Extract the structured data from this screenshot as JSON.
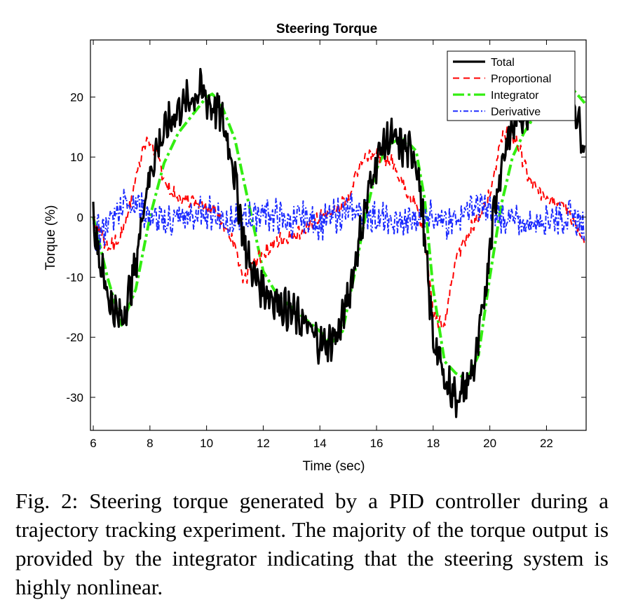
{
  "chart_data": {
    "type": "line",
    "title": "Steering Torque",
    "xlabel": "Time (sec)",
    "ylabel": "Torque (%)",
    "xlim": [
      5.9,
      23.4
    ],
    "ylim": [
      -35.5,
      29.5
    ],
    "xticks": [
      6,
      8,
      10,
      12,
      14,
      16,
      18,
      20,
      22
    ],
    "yticks": [
      20,
      10,
      0,
      -10,
      -20,
      -30
    ],
    "grid": false,
    "legend_position": "top-right",
    "series": [
      {
        "name": "Total",
        "color": "#000000",
        "style": "solid",
        "noise": 2.6,
        "x": [
          6.0,
          6.3,
          6.6,
          6.9,
          7.1,
          7.5,
          7.8,
          8.2,
          8.6,
          9.0,
          9.5,
          9.8,
          10.1,
          10.5,
          10.9,
          11.2,
          11.4,
          11.7,
          12.0,
          12.5,
          13.0,
          13.5,
          14.0,
          14.3,
          14.7,
          15.1,
          15.5,
          15.9,
          16.2,
          16.5,
          16.8,
          17.1,
          17.4,
          17.6,
          17.8,
          18.0,
          18.4,
          18.8,
          19.1,
          19.5,
          19.8,
          20.1,
          20.5,
          20.9,
          21.3,
          21.7,
          22.0,
          22.4,
          22.8,
          23.1,
          23.35
        ],
        "y": [
          0,
          -9,
          -14,
          -17,
          -16,
          -8,
          3,
          11,
          15,
          18,
          20,
          21,
          19,
          17,
          10,
          0,
          -6,
          -10,
          -12,
          -14,
          -16,
          -18,
          -21,
          -21,
          -19,
          -11,
          -1,
          8,
          12,
          13,
          12,
          11,
          10,
          2,
          -10,
          -20,
          -27,
          -30,
          -29,
          -24,
          -14,
          0,
          11,
          16,
          18,
          20,
          23,
          24,
          22,
          17,
          11
        ]
      },
      {
        "name": "Proportional",
        "color": "#ff0000",
        "style": "dashed",
        "noise": 1.0,
        "x": [
          6.0,
          6.5,
          6.9,
          7.3,
          7.6,
          7.9,
          8.2,
          8.6,
          9.0,
          9.5,
          10.0,
          10.5,
          11.0,
          11.3,
          11.6,
          12.0,
          12.5,
          13.0,
          13.5,
          14.0,
          14.5,
          15.0,
          15.4,
          15.8,
          16.2,
          16.6,
          17.0,
          17.4,
          17.7,
          18.0,
          18.4,
          18.8,
          19.2,
          19.6,
          20.0,
          20.3,
          20.6,
          21.0,
          21.4,
          21.8,
          22.3,
          22.8,
          23.35
        ],
        "y": [
          0,
          -5,
          -4,
          2,
          9,
          13,
          11,
          5,
          3,
          3,
          2,
          0,
          -5,
          -11,
          -8,
          -6,
          -4,
          -3,
          -2,
          0,
          1,
          3,
          9,
          11,
          10,
          9,
          5,
          2,
          -3,
          -16,
          -18,
          -7,
          -3,
          0,
          4,
          11,
          15,
          12,
          6,
          4,
          3,
          1,
          -5
        ]
      },
      {
        "name": "Integrator",
        "color": "#33ee11",
        "style": "dashdot",
        "noise": 0,
        "x": [
          6.0,
          6.5,
          7.0,
          7.5,
          8.0,
          8.5,
          9.0,
          9.5,
          10.0,
          10.2,
          10.5,
          11.0,
          11.5,
          12.0,
          12.5,
          13.0,
          13.5,
          14.0,
          14.4,
          14.8,
          15.2,
          15.6,
          16.0,
          16.4,
          16.8,
          17.0,
          17.4,
          17.7,
          18.0,
          18.4,
          18.8,
          19.2,
          19.6,
          20.0,
          20.4,
          20.8,
          21.2,
          21.6,
          22.0,
          22.4,
          22.8,
          23.35
        ],
        "y": [
          0,
          -10,
          -18,
          -12,
          0,
          9,
          14,
          17,
          20,
          20.5,
          19,
          13,
          2,
          -9,
          -13,
          -15,
          -17,
          -19,
          -21,
          -19,
          -10,
          0,
          8,
          12,
          13,
          13,
          11,
          3,
          -12,
          -24,
          -26,
          -27,
          -23,
          -10,
          2,
          10,
          14,
          17,
          19,
          21,
          22,
          19
        ]
      },
      {
        "name": "Derivative",
        "color": "#1c2bff",
        "style": "dashdotted",
        "noise": 2.2,
        "x": [
          6.0,
          6.4,
          6.8,
          7.2,
          7.6,
          8.0,
          8.5,
          9.0,
          9.5,
          10.0,
          10.5,
          11.0,
          11.5,
          12.0,
          12.5,
          13.0,
          13.5,
          14.0,
          14.5,
          15.0,
          15.5,
          16.0,
          16.5,
          17.0,
          17.5,
          18.0,
          18.5,
          19.0,
          19.5,
          20.0,
          20.5,
          21.0,
          21.5,
          22.0,
          22.5,
          23.0,
          23.35
        ],
        "y": [
          -3,
          -2,
          1,
          3,
          2,
          0,
          -1,
          0,
          0,
          1,
          0,
          -1,
          0,
          1,
          0,
          -1,
          0,
          -1,
          0,
          1,
          1,
          0,
          -1,
          -1,
          0,
          1,
          -2,
          1,
          2,
          1,
          0,
          -1,
          -1,
          0,
          0,
          0,
          -2
        ]
      }
    ]
  },
  "caption": "Fig. 2: Steering torque generated by a PID controller during a trajectory tracking experiment. The majority of the torque output is provided by the integrator indicating that the steering system is highly nonlinear."
}
